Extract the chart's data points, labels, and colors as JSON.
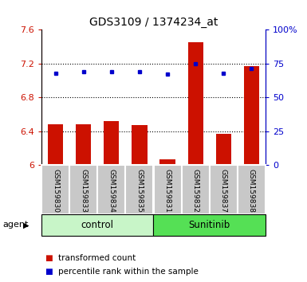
{
  "title": "GDS3109 / 1374234_at",
  "samples": [
    "GSM159830",
    "GSM159833",
    "GSM159834",
    "GSM159835",
    "GSM159831",
    "GSM159832",
    "GSM159837",
    "GSM159838"
  ],
  "bar_values": [
    6.48,
    6.48,
    6.52,
    6.47,
    6.07,
    7.45,
    6.37,
    7.17
  ],
  "dot_values": [
    68,
    69,
    69,
    69,
    67,
    75,
    68,
    71
  ],
  "ylim_left": [
    6.0,
    7.6
  ],
  "ylim_right": [
    0,
    100
  ],
  "yticks_left": [
    6.0,
    6.4,
    6.8,
    7.2,
    7.6
  ],
  "yticks_right": [
    0,
    25,
    50,
    75,
    100
  ],
  "ytick_labels_left": [
    "6",
    "6.4",
    "6.8",
    "7.2",
    "7.6"
  ],
  "ytick_labels_right": [
    "0",
    "25",
    "50",
    "75",
    "100%"
  ],
  "grid_yticks": [
    6.4,
    6.8,
    7.2
  ],
  "groups": [
    {
      "label": "control",
      "indices": [
        0,
        1,
        2,
        3
      ],
      "color": "#c8f5c8"
    },
    {
      "label": "Sunitinib",
      "indices": [
        4,
        5,
        6,
        7
      ],
      "color": "#55e055"
    }
  ],
  "bar_color": "#cc1100",
  "dot_color": "#0000cc",
  "tick_label_area_color": "#c8c8c8",
  "agent_label": "agent",
  "legend_items": [
    {
      "color": "#cc1100",
      "label": "transformed count"
    },
    {
      "color": "#0000cc",
      "label": "percentile rank within the sample"
    }
  ],
  "bar_width": 0.55
}
